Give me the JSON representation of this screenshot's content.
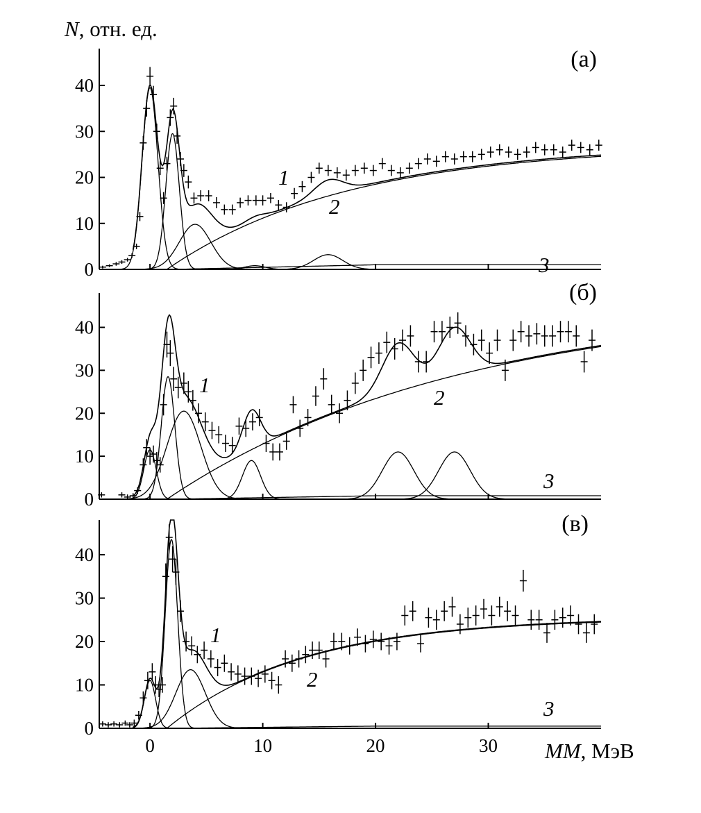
{
  "chart_data": {
    "type": "line",
    "ylabel_symbol": "N",
    "ylabel_rest": ", отн. ед.",
    "xlabel_symbol": "MM",
    "xlabel_rest": ", МэВ",
    "xlim": [
      -4.5,
      40
    ],
    "ylim": [
      0,
      48
    ],
    "x_ticks": [
      0,
      10,
      20,
      30
    ],
    "y_ticks": [
      0,
      10,
      20,
      30,
      40
    ],
    "curve_labels": {
      "total": "1",
      "background": "2",
      "other": "3"
    },
    "panels": [
      {
        "label": "(а)",
        "peaks": [
          {
            "center": 0.0,
            "height": 39.5,
            "sigma": 0.7
          },
          {
            "center": 2.0,
            "height": 29.5,
            "sigma": 0.6
          },
          {
            "center": 4.0,
            "height": 9.8,
            "sigma": 1.4
          },
          {
            "center": 9.3,
            "height": 0.8,
            "sigma": 0.9
          },
          {
            "center": 15.8,
            "height": 3.2,
            "sigma": 1.3
          }
        ],
        "background": {
          "amplitude": 27.0,
          "onset": 1.5,
          "scale": 16.0
        },
        "curve3_level": 1.0,
        "points": [
          [
            -4.2,
            0.5,
            0.3
          ],
          [
            -3.6,
            0.8,
            0.3
          ],
          [
            -3.0,
            1.2,
            0.4
          ],
          [
            -2.5,
            1.6,
            0.4
          ],
          [
            -2.0,
            2.1,
            0.4
          ],
          [
            -1.6,
            3.0,
            0.5
          ],
          [
            -1.2,
            5.0,
            0.6
          ],
          [
            -0.9,
            11.5,
            1.0
          ],
          [
            -0.6,
            27.5,
            1.5
          ],
          [
            -0.3,
            35.0,
            1.8
          ],
          [
            0.0,
            42.0,
            2.0
          ],
          [
            0.3,
            38.0,
            1.9
          ],
          [
            0.6,
            30.0,
            1.7
          ],
          [
            0.9,
            22.0,
            1.5
          ],
          [
            1.2,
            15.5,
            1.3
          ],
          [
            1.5,
            23.0,
            1.5
          ],
          [
            1.8,
            33.0,
            1.8
          ],
          [
            2.1,
            35.5,
            1.8
          ],
          [
            2.4,
            29.0,
            1.7
          ],
          [
            2.7,
            24.0,
            1.5
          ],
          [
            3.0,
            21.5,
            1.4
          ],
          [
            3.4,
            19.0,
            1.4
          ],
          [
            3.9,
            15.5,
            1.2
          ],
          [
            4.5,
            16.0,
            1.2
          ],
          [
            5.2,
            16.0,
            1.2
          ],
          [
            5.9,
            14.5,
            1.2
          ],
          [
            6.6,
            13.0,
            1.1
          ],
          [
            7.3,
            13.0,
            1.1
          ],
          [
            8.0,
            14.5,
            1.1
          ],
          [
            8.7,
            15.0,
            1.1
          ],
          [
            9.4,
            15.0,
            1.1
          ],
          [
            10.0,
            15.0,
            1.1
          ],
          [
            10.7,
            15.5,
            1.1
          ],
          [
            11.4,
            14.0,
            1.1
          ],
          [
            12.1,
            13.5,
            1.1
          ],
          [
            12.8,
            16.5,
            1.2
          ],
          [
            13.5,
            18.0,
            1.2
          ],
          [
            14.3,
            20.0,
            1.2
          ],
          [
            15.0,
            22.0,
            1.2
          ],
          [
            15.8,
            21.5,
            1.2
          ],
          [
            16.6,
            21.0,
            1.2
          ],
          [
            17.4,
            20.5,
            1.2
          ],
          [
            18.2,
            21.5,
            1.2
          ],
          [
            19.0,
            22.0,
            1.2
          ],
          [
            19.8,
            21.5,
            1.2
          ],
          [
            20.6,
            23.0,
            1.2
          ],
          [
            21.4,
            21.5,
            1.2
          ],
          [
            22.2,
            21.0,
            1.2
          ],
          [
            23.0,
            22.0,
            1.2
          ],
          [
            23.8,
            23.0,
            1.2
          ],
          [
            24.6,
            24.0,
            1.2
          ],
          [
            25.4,
            23.5,
            1.2
          ],
          [
            26.2,
            24.5,
            1.2
          ],
          [
            27.0,
            24.0,
            1.2
          ],
          [
            27.8,
            24.5,
            1.2
          ],
          [
            28.6,
            24.5,
            1.2
          ],
          [
            29.4,
            25.0,
            1.2
          ],
          [
            30.2,
            25.5,
            1.2
          ],
          [
            31.0,
            26.0,
            1.2
          ],
          [
            31.8,
            25.5,
            1.2
          ],
          [
            32.6,
            25.0,
            1.2
          ],
          [
            33.4,
            25.5,
            1.2
          ],
          [
            34.2,
            26.5,
            1.2
          ],
          [
            35.0,
            26.0,
            1.2
          ],
          [
            35.8,
            26.0,
            1.2
          ],
          [
            36.6,
            25.5,
            1.2
          ],
          [
            37.4,
            27.0,
            1.2
          ],
          [
            38.2,
            26.5,
            1.2
          ],
          [
            39.0,
            26.0,
            1.2
          ],
          [
            39.8,
            27.0,
            1.2
          ]
        ]
      },
      {
        "label": "(б)",
        "peaks": [
          {
            "center": 0.0,
            "height": 11.5,
            "sigma": 0.55
          },
          {
            "center": 1.6,
            "height": 28.5,
            "sigma": 0.6
          },
          {
            "center": 3.0,
            "height": 20.5,
            "sigma": 1.5
          },
          {
            "center": 9.0,
            "height": 9.0,
            "sigma": 0.8
          },
          {
            "center": 22.0,
            "height": 11.0,
            "sigma": 1.4
          },
          {
            "center": 27.0,
            "height": 11.0,
            "sigma": 1.4
          }
        ],
        "background": {
          "amplitude": 46.0,
          "onset": 1.5,
          "scale": 26.0
        },
        "curve3_level": 0.8,
        "points": [
          [
            -4.3,
            1.0,
            0.6
          ],
          [
            -2.5,
            1.0,
            0.6
          ],
          [
            -2.0,
            0.5,
            0.6
          ],
          [
            -1.5,
            0.8,
            0.6
          ],
          [
            -1.1,
            2.0,
            0.8
          ],
          [
            -0.6,
            8.0,
            1.5
          ],
          [
            -0.3,
            12.0,
            2.0
          ],
          [
            0.0,
            10.0,
            2.0
          ],
          [
            0.3,
            10.5,
            2.0
          ],
          [
            0.6,
            9.0,
            2.0
          ],
          [
            0.9,
            8.0,
            1.8
          ],
          [
            1.2,
            22.0,
            2.5
          ],
          [
            1.5,
            36.0,
            3.0
          ],
          [
            1.8,
            34.0,
            3.0
          ],
          [
            2.1,
            28.0,
            2.8
          ],
          [
            2.5,
            26.0,
            2.5
          ],
          [
            3.0,
            27.0,
            2.5
          ],
          [
            3.4,
            25.0,
            2.5
          ],
          [
            3.8,
            23.0,
            2.4
          ],
          [
            4.3,
            20.0,
            2.3
          ],
          [
            4.9,
            18.0,
            2.2
          ],
          [
            5.5,
            16.0,
            2.0
          ],
          [
            6.1,
            15.0,
            2.0
          ],
          [
            6.7,
            13.0,
            2.0
          ],
          [
            7.3,
            12.5,
            2.0
          ],
          [
            7.9,
            17.0,
            2.0
          ],
          [
            8.5,
            16.5,
            2.0
          ],
          [
            9.1,
            18.0,
            2.0
          ],
          [
            9.7,
            19.0,
            2.0
          ],
          [
            10.3,
            13.0,
            2.0
          ],
          [
            10.9,
            11.0,
            2.0
          ],
          [
            11.5,
            11.0,
            2.0
          ],
          [
            12.1,
            13.5,
            2.0
          ],
          [
            12.7,
            22.0,
            2.0
          ],
          [
            13.3,
            16.5,
            2.0
          ],
          [
            14.0,
            19.0,
            2.0
          ],
          [
            14.7,
            24.0,
            2.3
          ],
          [
            15.4,
            28.0,
            2.5
          ],
          [
            16.1,
            22.0,
            2.3
          ],
          [
            16.8,
            20.0,
            2.3
          ],
          [
            17.5,
            23.0,
            2.3
          ],
          [
            18.2,
            27.0,
            2.5
          ],
          [
            18.9,
            30.0,
            2.5
          ],
          [
            19.6,
            33.0,
            2.5
          ],
          [
            20.3,
            34.0,
            2.5
          ],
          [
            21.0,
            36.5,
            2.5
          ],
          [
            21.7,
            35.0,
            2.5
          ],
          [
            22.4,
            37.0,
            2.5
          ],
          [
            23.1,
            38.0,
            2.5
          ],
          [
            23.8,
            32.0,
            2.5
          ],
          [
            24.5,
            32.0,
            2.5
          ],
          [
            25.2,
            39.0,
            2.5
          ],
          [
            25.9,
            39.0,
            2.5
          ],
          [
            26.6,
            40.0,
            2.5
          ],
          [
            27.3,
            41.0,
            2.5
          ],
          [
            28.0,
            38.0,
            2.5
          ],
          [
            28.7,
            36.0,
            2.5
          ],
          [
            29.4,
            37.0,
            2.5
          ],
          [
            30.1,
            34.0,
            2.5
          ],
          [
            30.8,
            37.0,
            2.5
          ],
          [
            31.5,
            30.0,
            2.5
          ],
          [
            32.2,
            37.0,
            2.5
          ],
          [
            32.9,
            39.0,
            2.5
          ],
          [
            33.6,
            38.0,
            2.5
          ],
          [
            34.3,
            38.5,
            2.5
          ],
          [
            35.0,
            38.0,
            2.5
          ],
          [
            35.7,
            38.0,
            2.5
          ],
          [
            36.4,
            39.0,
            2.5
          ],
          [
            37.1,
            39.0,
            2.5
          ],
          [
            37.8,
            38.0,
            2.5
          ],
          [
            38.5,
            32.0,
            2.5
          ],
          [
            39.2,
            37.0,
            2.5
          ]
        ]
      },
      {
        "label": "(в)",
        "peaks": [
          {
            "center": 0.0,
            "height": 11.0,
            "sigma": 0.5
          },
          {
            "center": 1.9,
            "height": 43.5,
            "sigma": 0.55
          },
          {
            "center": 3.6,
            "height": 13.5,
            "sigma": 1.3
          }
        ],
        "background": {
          "amplitude": 25.5,
          "onset": 1.5,
          "scale": 12.0
        },
        "curve3_level": 0.5,
        "points": [
          [
            -4.2,
            1.0,
            0.6
          ],
          [
            -3.7,
            0.8,
            0.6
          ],
          [
            -3.2,
            1.0,
            0.6
          ],
          [
            -2.7,
            0.8,
            0.6
          ],
          [
            -2.2,
            1.2,
            0.6
          ],
          [
            -1.8,
            0.8,
            0.6
          ],
          [
            -1.4,
            1.2,
            0.8
          ],
          [
            -1.0,
            3.0,
            1.0
          ],
          [
            -0.6,
            7.0,
            1.5
          ],
          [
            -0.2,
            11.0,
            2.0
          ],
          [
            0.2,
            13.0,
            2.0
          ],
          [
            0.5,
            10.0,
            2.0
          ],
          [
            0.8,
            9.0,
            1.8
          ],
          [
            1.1,
            10.0,
            1.8
          ],
          [
            1.4,
            35.0,
            3.0
          ],
          [
            1.7,
            44.0,
            3.0
          ],
          [
            2.0,
            39.0,
            3.0
          ],
          [
            2.3,
            36.0,
            3.0
          ],
          [
            2.7,
            27.0,
            2.5
          ],
          [
            3.2,
            20.0,
            2.3
          ],
          [
            3.7,
            19.0,
            2.2
          ],
          [
            4.2,
            17.0,
            2.0
          ],
          [
            4.8,
            18.0,
            2.0
          ],
          [
            5.4,
            16.0,
            2.0
          ],
          [
            6.0,
            14.0,
            2.0
          ],
          [
            6.6,
            15.0,
            2.0
          ],
          [
            7.2,
            13.0,
            2.0
          ],
          [
            7.8,
            12.5,
            2.0
          ],
          [
            8.4,
            12.0,
            2.0
          ],
          [
            9.0,
            12.0,
            2.0
          ],
          [
            9.6,
            11.5,
            2.0
          ],
          [
            10.2,
            12.5,
            2.0
          ],
          [
            10.8,
            11.0,
            2.0
          ],
          [
            11.4,
            10.0,
            2.0
          ],
          [
            12.0,
            16.0,
            2.0
          ],
          [
            12.6,
            15.0,
            2.0
          ],
          [
            13.2,
            16.0,
            2.0
          ],
          [
            13.8,
            17.0,
            2.0
          ],
          [
            14.4,
            18.0,
            2.0
          ],
          [
            15.0,
            18.0,
            2.0
          ],
          [
            15.6,
            16.0,
            2.0
          ],
          [
            16.3,
            20.0,
            2.0
          ],
          [
            17.0,
            20.0,
            2.0
          ],
          [
            17.7,
            19.0,
            2.0
          ],
          [
            18.4,
            21.0,
            2.0
          ],
          [
            19.1,
            19.5,
            2.0
          ],
          [
            19.8,
            20.5,
            2.0
          ],
          [
            20.5,
            20.0,
            2.0
          ],
          [
            21.2,
            19.0,
            2.0
          ],
          [
            21.9,
            20.0,
            2.0
          ],
          [
            22.6,
            26.0,
            2.3
          ],
          [
            23.3,
            27.0,
            2.3
          ],
          [
            24.0,
            19.5,
            2.0
          ],
          [
            24.7,
            25.5,
            2.3
          ],
          [
            25.4,
            25.0,
            2.3
          ],
          [
            26.1,
            27.0,
            2.3
          ],
          [
            26.8,
            28.0,
            2.3
          ],
          [
            27.5,
            24.0,
            2.3
          ],
          [
            28.2,
            25.5,
            2.3
          ],
          [
            28.9,
            26.0,
            2.3
          ],
          [
            29.6,
            27.5,
            2.3
          ],
          [
            30.3,
            26.0,
            2.3
          ],
          [
            31.0,
            28.0,
            2.3
          ],
          [
            31.7,
            27.0,
            2.3
          ],
          [
            32.4,
            26.0,
            2.3
          ],
          [
            33.1,
            34.0,
            2.5
          ],
          [
            33.8,
            25.0,
            2.3
          ],
          [
            34.5,
            25.0,
            2.3
          ],
          [
            35.2,
            22.0,
            2.3
          ],
          [
            35.9,
            25.0,
            2.3
          ],
          [
            36.6,
            25.5,
            2.3
          ],
          [
            37.3,
            26.0,
            2.3
          ],
          [
            38.0,
            24.0,
            2.3
          ],
          [
            38.7,
            22.0,
            2.3
          ],
          [
            39.4,
            24.0,
            2.3
          ]
        ]
      }
    ]
  }
}
